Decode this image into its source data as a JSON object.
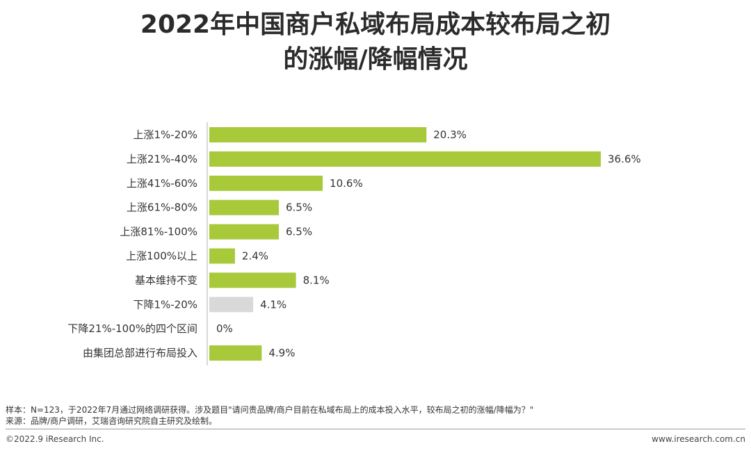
{
  "header": {
    "title_line1": "2022年中国商户私域布局成本较布局之初",
    "title_line2": "的涨幅/降幅情况"
  },
  "chart_data": {
    "type": "bar",
    "orientation": "horizontal",
    "categories": [
      "上涨1%-20%",
      "上涨21%-40%",
      "上涨41%-60%",
      "上涨61%-80%",
      "上涨81%-100%",
      "上涨100%以上",
      "基本维持不变",
      "下降1%-20%",
      "下降21%-100%的四个区间",
      "由集团总部进行布局投入"
    ],
    "values": [
      20.3,
      36.6,
      10.6,
      6.5,
      6.5,
      2.4,
      8.1,
      4.1,
      0,
      4.9
    ],
    "value_labels": [
      "20.3%",
      "36.6%",
      "10.6%",
      "6.5%",
      "6.5%",
      "2.4%",
      "8.1%",
      "4.1%",
      "0%",
      "4.9%"
    ],
    "bar_colors": [
      "#a8c93a",
      "#a8c93a",
      "#a8c93a",
      "#a8c93a",
      "#a8c93a",
      "#a8c93a",
      "#a8c93a",
      "#d9d9d9",
      "#a8c93a",
      "#a8c93a"
    ],
    "unit": "%",
    "xlim": [
      0,
      36.6
    ],
    "grid": false
  },
  "notes": {
    "sample": "样本：N=123，于2022年7月通过网络调研获得。涉及题目\"请问贵品牌/商户目前在私域布局上的成本投入水平，较布局之初的涨幅/降幅为？\"",
    "source": "来源：品牌/商户调研，艾瑞咨询研究院自主研究及绘制。"
  },
  "footer": {
    "copyright": "©2022.9 iResearch Inc.",
    "website": "www.iresearch.com.cn"
  }
}
